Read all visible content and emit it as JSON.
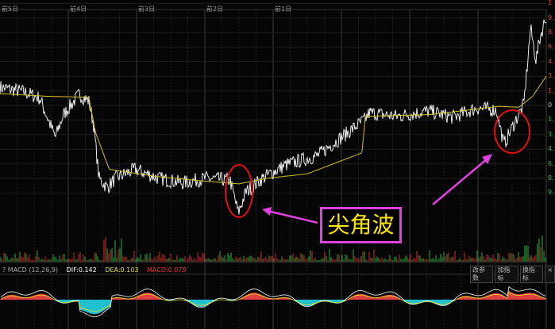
{
  "header": {
    "day_labels": [
      "前5日",
      "前4日",
      "前3日",
      "前2日",
      "前1日"
    ]
  },
  "right_axis": {
    "up_labels": [
      "1",
      "9.",
      "8.",
      "6.",
      "4.",
      "3.",
      "1."
    ],
    "zero_label": "0",
    "down_labels": [
      "1.",
      "3.",
      "4.",
      "6.",
      "8.",
      "9."
    ]
  },
  "macd": {
    "title": "? MACD (12,26,9)",
    "dif": "DIF:0.142",
    "dea": "DEA:0.103",
    "macd": "MACD:0.079",
    "buttons": [
      "改参数",
      "加指标",
      "换指标"
    ],
    "close": "×"
  },
  "annotation": {
    "label": "尖角波"
  },
  "colors": {
    "price": "#ffffff",
    "ma": "#d4c020",
    "up": "#e04040",
    "down": "#20c0d0",
    "annotation_box": "#e040e0",
    "annotation_text": "#ffe600",
    "circle": "#e01010"
  },
  "chart_data": {
    "type": "line",
    "xlabel": "",
    "ylabel": "",
    "x_unit": "trading days",
    "ylim_pct": [
      -11.5,
      11.2
    ],
    "series": [
      {
        "key": "price",
        "points": [
          [
            0,
            2
          ],
          [
            0.35,
            1.5
          ],
          [
            0.58,
            0.8
          ],
          [
            0.81,
            -3.5
          ],
          [
            0.93,
            -1
          ],
          [
            1.16,
            1.2
          ],
          [
            1.3,
            0.5
          ],
          [
            1.37,
            -2
          ],
          [
            1.45,
            -8
          ],
          [
            1.57,
            -9
          ],
          [
            1.69,
            -8
          ],
          [
            1.98,
            -7
          ],
          [
            2.33,
            -8
          ],
          [
            2.67,
            -8.5
          ],
          [
            3.02,
            -8
          ],
          [
            3.37,
            -8.2
          ],
          [
            3.49,
            -11.8
          ],
          [
            3.6,
            -9.5
          ],
          [
            3.84,
            -8
          ],
          [
            4.19,
            -6.5
          ],
          [
            4.65,
            -5.5
          ],
          [
            5.0,
            -3.5
          ],
          [
            5.35,
            -1.5
          ],
          [
            5.41,
            -0.8
          ],
          [
            5.81,
            -1.2
          ],
          [
            6.28,
            -0.6
          ],
          [
            6.63,
            -1.3
          ],
          [
            6.98,
            -0.3
          ],
          [
            7.27,
            -0.5
          ],
          [
            7.38,
            -4.3
          ],
          [
            7.56,
            -1.5
          ],
          [
            7.67,
            0
          ],
          [
            7.77,
            8.5
          ],
          [
            7.85,
            5
          ],
          [
            7.91,
            7.5
          ],
          [
            8.0,
            9.8
          ]
        ]
      },
      {
        "key": "ma",
        "points": [
          [
            0,
            1.3
          ],
          [
            0.7,
            1.0
          ],
          [
            1.3,
            0.9
          ],
          [
            1.4,
            -3
          ],
          [
            1.6,
            -7
          ],
          [
            2.3,
            -7.8
          ],
          [
            3.0,
            -8.3
          ],
          [
            3.5,
            -8.6
          ],
          [
            3.9,
            -8.0
          ],
          [
            4.5,
            -7.5
          ],
          [
            5.3,
            -5.2
          ],
          [
            5.35,
            -1.2
          ],
          [
            6.3,
            -1.0
          ],
          [
            7.3,
            -0.1
          ],
          [
            7.6,
            -0.2
          ],
          [
            7.8,
            1
          ],
          [
            8.0,
            3.2
          ]
        ]
      }
    ]
  }
}
